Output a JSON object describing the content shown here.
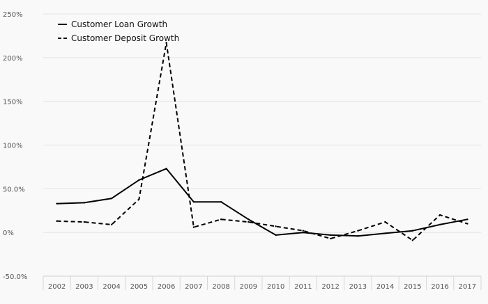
{
  "chart_data": {
    "type": "line",
    "title": "",
    "xlabel": "",
    "ylabel": "",
    "categories": [
      "2002",
      "2003",
      "2004",
      "2005",
      "2006",
      "2007",
      "2008",
      "2009",
      "2010",
      "2011",
      "2012",
      "2013",
      "2014",
      "2015",
      "2016",
      "2017"
    ],
    "ylim": [
      -50,
      250
    ],
    "yticks": [
      {
        "value": 250,
        "label": "250%"
      },
      {
        "value": 200,
        "label": "200%"
      },
      {
        "value": 150,
        "label": "150%"
      },
      {
        "value": 100,
        "label": "100%"
      },
      {
        "value": 50,
        "label": "50.0%"
      },
      {
        "value": 0,
        "label": "0%"
      },
      {
        "value": -50,
        "label": "-50.0%"
      }
    ],
    "grid": true,
    "legend_position": "top-left",
    "series": [
      {
        "name": "Customer Loan Growth",
        "style": "solid",
        "color": "#000000",
        "values": [
          33,
          34,
          39,
          60,
          73,
          35,
          35,
          15,
          -3,
          0,
          -3,
          -4,
          -1,
          2,
          9,
          15
        ]
      },
      {
        "name": "Customer Deposit Growth",
        "style": "dashed",
        "color": "#000000",
        "values": [
          13,
          12,
          9,
          38,
          217,
          6,
          15,
          12,
          7,
          2,
          -7,
          2,
          12,
          -9,
          20,
          10
        ]
      }
    ]
  }
}
